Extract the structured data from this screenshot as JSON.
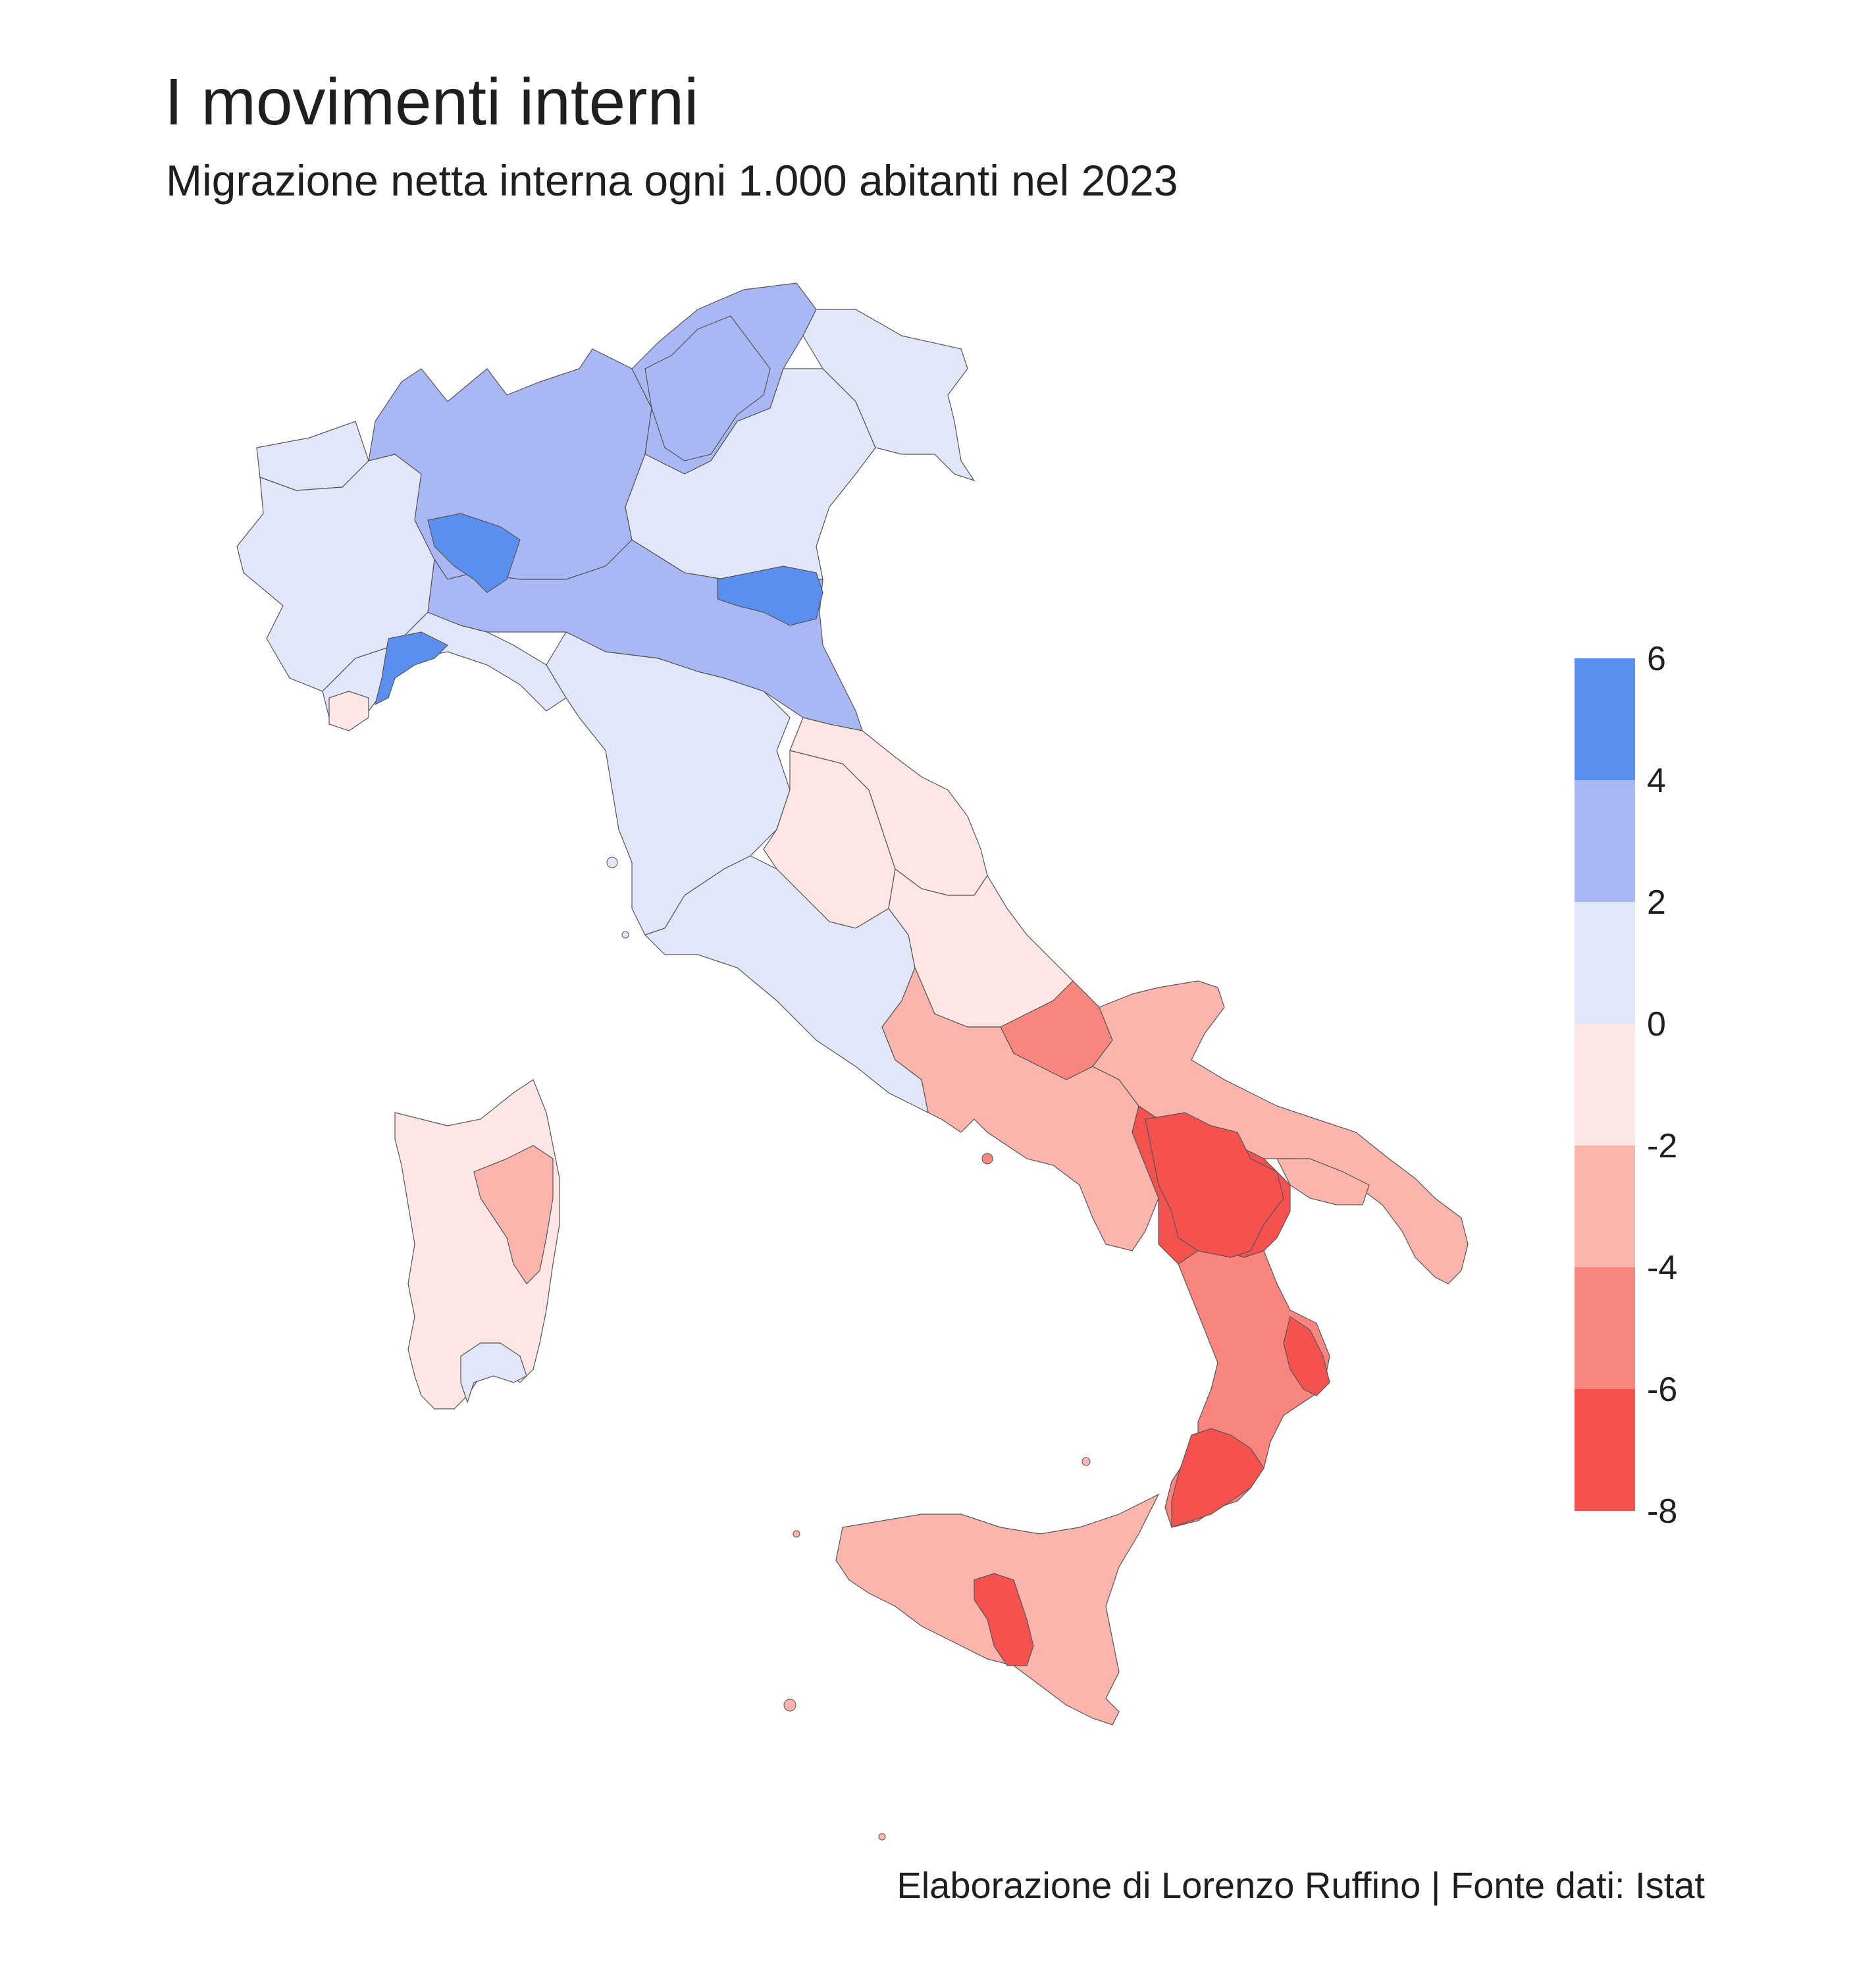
{
  "title": "I movimenti interni",
  "subtitle": "Migrazione netta interna ogni 1.000 abitanti nel 2023",
  "caption": "Elaborazione di Lorenzo Ruffino | Fonte dati: Istat",
  "legend": {
    "labels": [
      "6",
      "4",
      "2",
      "0",
      "-2",
      "-4",
      "-6",
      "-8"
    ],
    "bins": [
      {
        "range": [
          4,
          6
        ],
        "color": "#5b8fef"
      },
      {
        "range": [
          2,
          4
        ],
        "color": "#a9b8f4"
      },
      {
        "range": [
          0,
          2
        ],
        "color": "#e1e6f9"
      },
      {
        "range": [
          -2,
          0
        ],
        "color": "#fde6e4"
      },
      {
        "range": [
          -4,
          -2
        ],
        "color": "#fbb5ad"
      },
      {
        "range": [
          -6,
          -4
        ],
        "color": "#f9867e"
      },
      {
        "range": [
          -8,
          -6
        ],
        "color": "#f5524f"
      }
    ]
  },
  "map_regions": [
    {
      "name": "Valle d'Aosta",
      "bin": 2
    },
    {
      "name": "Piemonte",
      "bin": 2
    },
    {
      "name": "Lombardia",
      "bin": 1
    },
    {
      "name": "Trentino-Alto Adige",
      "bin": 1
    },
    {
      "name": "Veneto",
      "bin": 2
    },
    {
      "name": "Friuli-Venezia Giulia",
      "bin": 2
    },
    {
      "name": "Liguria",
      "bin": 2
    },
    {
      "name": "Emilia-Romagna",
      "bin": 1
    },
    {
      "name": "Toscana",
      "bin": 2
    },
    {
      "name": "Umbria",
      "bin": 3
    },
    {
      "name": "Marche",
      "bin": 3
    },
    {
      "name": "Lazio",
      "bin": 2
    },
    {
      "name": "Abruzzo",
      "bin": 3
    },
    {
      "name": "Molise",
      "bin": 5
    },
    {
      "name": "Campania",
      "bin": 4
    },
    {
      "name": "Puglia",
      "bin": 4
    },
    {
      "name": "Basilicata",
      "bin": 6
    },
    {
      "name": "Calabria",
      "bin": 5
    },
    {
      "name": "Sicilia",
      "bin": 4
    },
    {
      "name": "Sardegna",
      "bin": 3
    }
  ]
}
